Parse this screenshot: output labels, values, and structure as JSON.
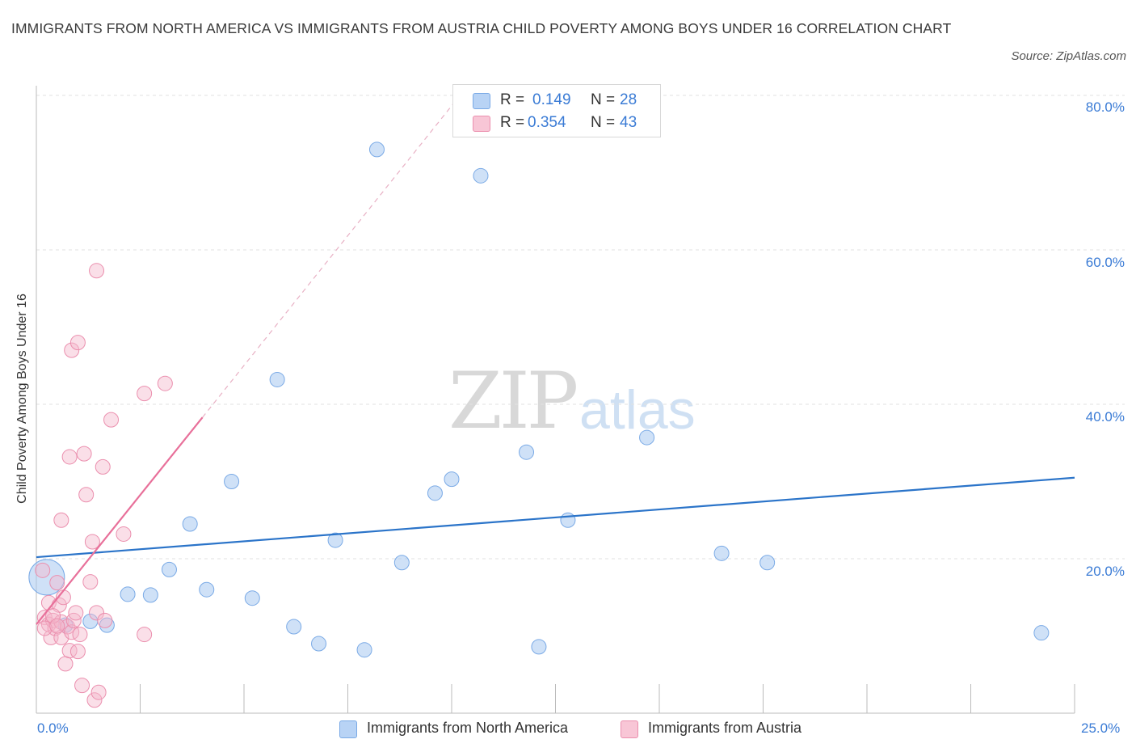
{
  "chart_data": {
    "type": "scatter",
    "title": "IMMIGRANTS FROM NORTH AMERICA VS IMMIGRANTS FROM AUSTRIA CHILD POVERTY AMONG BOYS UNDER 16 CORRELATION CHART",
    "source": "Source: ZipAtlas.com",
    "xlabel": "",
    "ylabel": "Child Poverty Among Boys Under 16",
    "xlim": [
      0,
      25
    ],
    "ylim": [
      0,
      80
    ],
    "x_tick_labels": {
      "min": "0.0%",
      "max": "25.0%"
    },
    "y_ticks": [
      20,
      40,
      60,
      80
    ],
    "y_tick_labels": [
      "20.0%",
      "40.0%",
      "60.0%",
      "80.0%"
    ],
    "watermark": {
      "zip": "ZIP",
      "atlas": "atlas"
    },
    "legend": {
      "rows": [
        {
          "r_label": "R =",
          "r_value": "0.149",
          "n_label": "N =",
          "n_value": "28"
        },
        {
          "r_label": "R =",
          "r_value": "0.354",
          "n_label": "N =",
          "n_value": "43"
        }
      ]
    },
    "series": [
      {
        "name": "Immigrants from North America",
        "color": "#a8c8f0",
        "stroke": "#7aaae6",
        "line_color": "#2b74c9",
        "trend": {
          "x0": 0,
          "y0": 20.2,
          "x1": 25,
          "y1": 30.5
        },
        "points": [
          [
            0.25,
            17.6
          ],
          [
            0.7,
            11.4
          ],
          [
            1.3,
            11.9
          ],
          [
            1.7,
            11.4
          ],
          [
            2.2,
            15.4
          ],
          [
            2.75,
            15.3
          ],
          [
            3.2,
            18.6
          ],
          [
            3.7,
            24.5
          ],
          [
            4.1,
            16.0
          ],
          [
            4.7,
            30.0
          ],
          [
            5.2,
            14.9
          ],
          [
            5.8,
            43.2
          ],
          [
            6.2,
            11.2
          ],
          [
            6.8,
            9.0
          ],
          [
            7.2,
            22.4
          ],
          [
            7.9,
            8.2
          ],
          [
            8.2,
            73.0
          ],
          [
            8.8,
            19.5
          ],
          [
            9.6,
            28.5
          ],
          [
            10.0,
            30.3
          ],
          [
            10.7,
            69.6
          ],
          [
            11.8,
            33.8
          ],
          [
            12.1,
            8.6
          ],
          [
            12.8,
            25.0
          ],
          [
            14.7,
            35.7
          ],
          [
            16.5,
            20.7
          ],
          [
            17.6,
            19.5
          ],
          [
            24.2,
            10.4
          ]
        ],
        "sizes": [
          22,
          9,
          9,
          9,
          9,
          9,
          9,
          9,
          9,
          9,
          9,
          9,
          9,
          9,
          9,
          9,
          9,
          9,
          9,
          9,
          9,
          9,
          9,
          9,
          9,
          9,
          9,
          9
        ]
      },
      {
        "name": "Immigrants from Austria",
        "color": "#f5b8cb",
        "stroke": "#eb8fae",
        "line_color": "#e8709a",
        "trend": {
          "x0": 0,
          "y0": 11.5,
          "x1": 4.0,
          "y1": 38.3
        },
        "trend_ext": {
          "x0": 4.0,
          "y0": 38.3,
          "x1": 10.2,
          "y1": 80
        },
        "points": [
          [
            0.15,
            18.5
          ],
          [
            0.2,
            12.4
          ],
          [
            0.3,
            14.3
          ],
          [
            0.3,
            11.5
          ],
          [
            0.35,
            9.8
          ],
          [
            0.4,
            12.0
          ],
          [
            0.45,
            11.0
          ],
          [
            0.5,
            16.9
          ],
          [
            0.55,
            14.0
          ],
          [
            0.6,
            11.8
          ],
          [
            0.6,
            9.8
          ],
          [
            0.6,
            25.0
          ],
          [
            0.65,
            15.0
          ],
          [
            0.7,
            6.4
          ],
          [
            0.75,
            11.2
          ],
          [
            0.8,
            33.2
          ],
          [
            0.8,
            8.1
          ],
          [
            0.85,
            10.5
          ],
          [
            0.85,
            47.0
          ],
          [
            0.9,
            12.0
          ],
          [
            0.95,
            13.0
          ],
          [
            1.0,
            48.0
          ],
          [
            1.0,
            8.0
          ],
          [
            1.05,
            10.2
          ],
          [
            1.1,
            3.6
          ],
          [
            1.15,
            33.6
          ],
          [
            1.2,
            28.3
          ],
          [
            1.3,
            17.0
          ],
          [
            1.35,
            22.2
          ],
          [
            1.4,
            1.7
          ],
          [
            1.45,
            13.0
          ],
          [
            1.45,
            57.3
          ],
          [
            1.5,
            2.7
          ],
          [
            1.6,
            31.9
          ],
          [
            1.65,
            12.0
          ],
          [
            1.8,
            38.0
          ],
          [
            2.1,
            23.2
          ],
          [
            2.6,
            10.2
          ],
          [
            2.6,
            41.4
          ],
          [
            3.1,
            42.7
          ],
          [
            0.2,
            11.0
          ],
          [
            0.4,
            12.6
          ],
          [
            0.5,
            11.3
          ]
        ],
        "sizes": [
          9,
          9,
          9,
          9,
          9,
          9,
          9,
          9,
          9,
          9,
          9,
          9,
          9,
          9,
          9,
          9,
          9,
          9,
          9,
          9,
          9,
          9,
          9,
          9,
          9,
          9,
          9,
          9,
          9,
          9,
          9,
          9,
          9,
          9,
          9,
          9,
          9,
          9,
          9,
          9,
          9,
          9,
          9
        ]
      }
    ]
  }
}
